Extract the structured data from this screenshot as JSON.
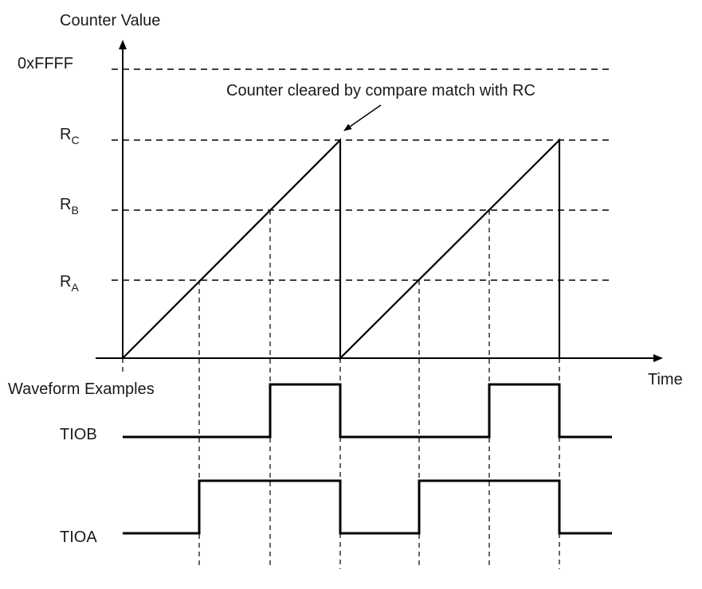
{
  "labels": {
    "y_axis": "Counter Value",
    "x_axis": "Time",
    "ffff": "0xFFFF",
    "rc_main": "R",
    "rc_sub": "C",
    "rb_main": "R",
    "rb_sub": "B",
    "ra_main": "R",
    "ra_sub": "A",
    "annotation": "Counter cleared by compare match with RC",
    "waveform_title": "Waveform Examples",
    "tiob": "TIOB",
    "tioa": "TIOA"
  }
}
